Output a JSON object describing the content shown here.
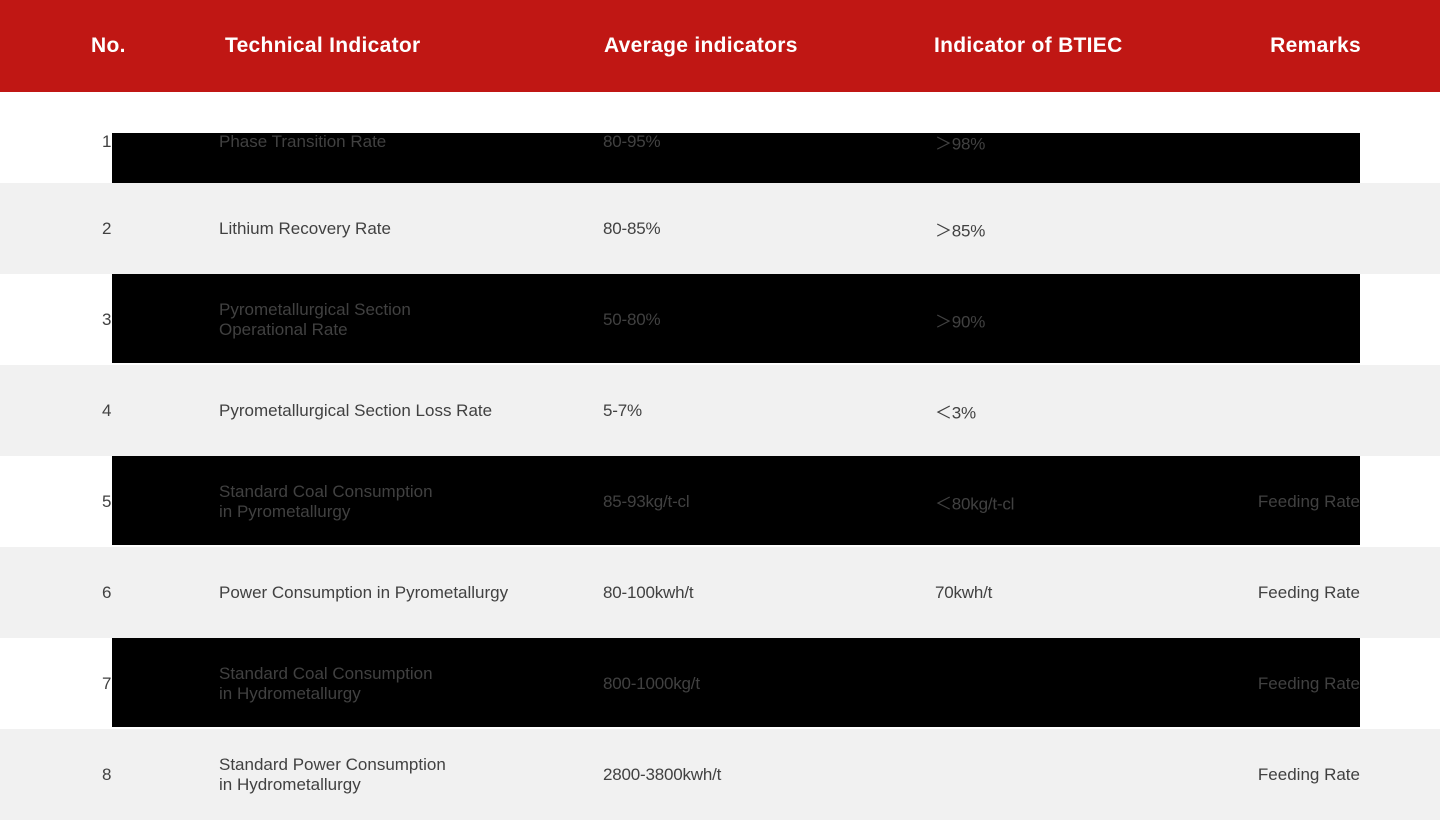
{
  "colors": {
    "header_bg": "#C01714",
    "header_text": "#FFFFFF",
    "row_alt_bg": "#F1F1F1",
    "row_bg": "#FFFFFF",
    "blackout_bar": "#000000",
    "body_text": "#414141"
  },
  "header": {
    "columns": [
      {
        "label": "No."
      },
      {
        "label": "Technical Indicator"
      },
      {
        "label": "Average indicators"
      },
      {
        "label": "Indicator of BTIEC"
      },
      {
        "label": "Remarks"
      }
    ]
  },
  "rows": [
    {
      "no": "1",
      "indicator": "Phase Transition Rate",
      "average": "80-95%",
      "btiec": "＞98%",
      "remarks": "",
      "blackout": "partial"
    },
    {
      "no": "2",
      "indicator": "Lithium Recovery Rate",
      "average": "80-85%",
      "btiec": "＞85%",
      "remarks": "",
      "blackout": "none"
    },
    {
      "no": "3",
      "indicator": "Pyrometallurgical Section\nOperational Rate",
      "average": "50-80%",
      "btiec": "＞90%",
      "remarks": "",
      "blackout": "full"
    },
    {
      "no": "4",
      "indicator": "Pyrometallurgical Section Loss Rate",
      "average": "5-7%",
      "btiec": "＜3%",
      "remarks": "",
      "blackout": "none"
    },
    {
      "no": "5",
      "indicator": "Standard Coal Consumption\nin Pyrometallurgy",
      "average": "85-93kg/t-cl",
      "btiec": "＜80kg/t-cl",
      "remarks": "Feeding Rate",
      "blackout": "full"
    },
    {
      "no": "6",
      "indicator": "Power Consumption in Pyrometallurgy",
      "average": "80-100kwh/t",
      "btiec": "70kwh/t",
      "remarks": "Feeding Rate",
      "blackout": "none"
    },
    {
      "no": "7",
      "indicator": "Standard Coal Consumption\nin Hydrometallurgy",
      "average": "800-1000kg/t",
      "btiec": "",
      "remarks": "Feeding Rate",
      "blackout": "full"
    },
    {
      "no": "8",
      "indicator": "Standard Power Consumption\nin Hydrometallurgy",
      "average": "2800-3800kwh/t",
      "btiec": "",
      "remarks": "Feeding Rate",
      "blackout": "none"
    }
  ]
}
